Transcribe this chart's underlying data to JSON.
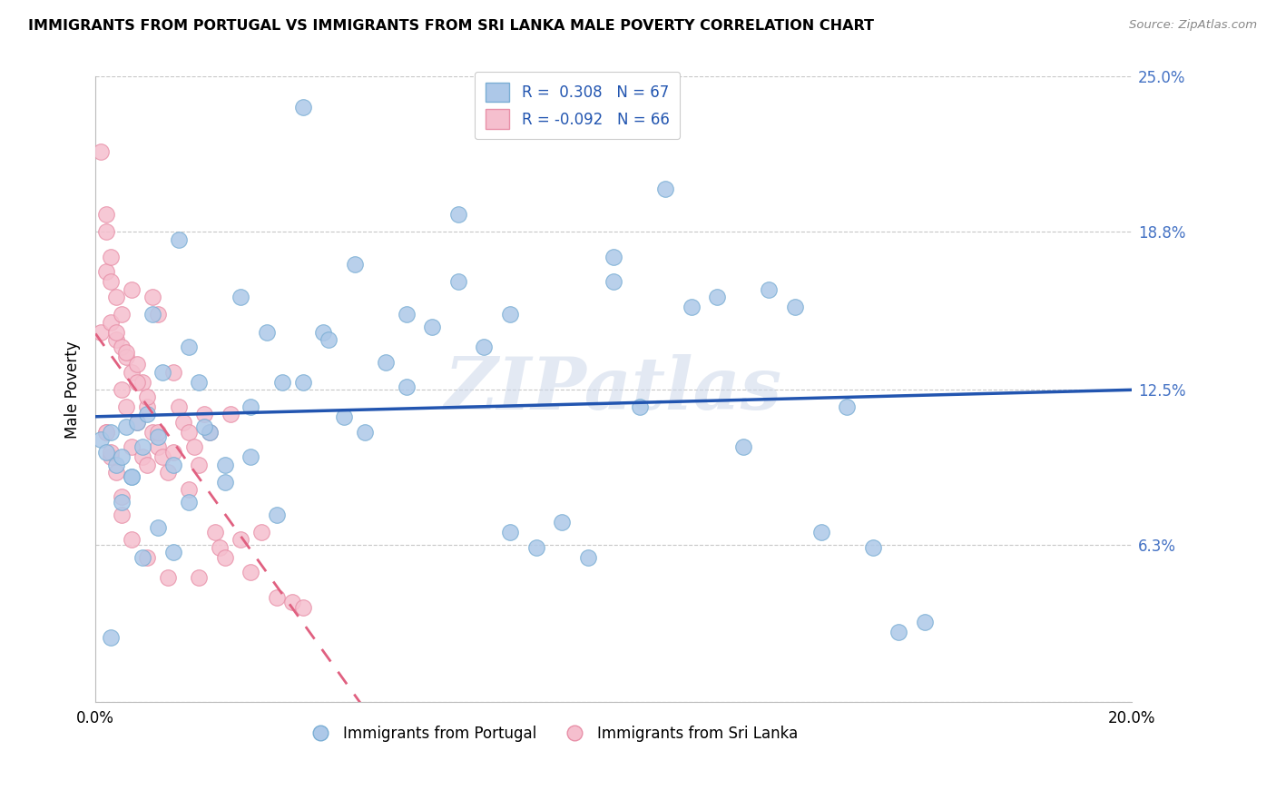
{
  "title": "IMMIGRANTS FROM PORTUGAL VS IMMIGRANTS FROM SRI LANKA MALE POVERTY CORRELATION CHART",
  "source": "Source: ZipAtlas.com",
  "ylabel": "Male Poverty",
  "xlim": [
    0.0,
    0.2
  ],
  "ylim": [
    0.0,
    0.25
  ],
  "ytick_vals": [
    0.0,
    0.063,
    0.125,
    0.188,
    0.25
  ],
  "ytick_labels": [
    "",
    "6.3%",
    "12.5%",
    "18.8%",
    "25.0%"
  ],
  "xtick_vals": [
    0.0,
    0.05,
    0.1,
    0.15,
    0.2
  ],
  "xtick_labels": [
    "0.0%",
    "",
    "",
    "",
    "20.0%"
  ],
  "portugal_color": "#adc8e8",
  "portugal_edge": "#7aaed4",
  "srilanka_color": "#f5bfce",
  "srilanka_edge": "#e890a8",
  "R_portugal": 0.308,
  "N_portugal": 67,
  "R_srilanka": -0.092,
  "N_srilanka": 66,
  "watermark_text": "ZIPatlas",
  "legend_portugal": "Immigrants from Portugal",
  "legend_srilanka": "Immigrants from Sri Lanka",
  "line_portugal_color": "#2255b0",
  "line_srilanka_color": "#e06080",
  "portugal_x": [
    0.001,
    0.002,
    0.003,
    0.004,
    0.005,
    0.006,
    0.007,
    0.008,
    0.009,
    0.01,
    0.011,
    0.012,
    0.013,
    0.015,
    0.016,
    0.018,
    0.02,
    0.022,
    0.025,
    0.028,
    0.03,
    0.033,
    0.036,
    0.04,
    0.044,
    0.048,
    0.052,
    0.056,
    0.06,
    0.065,
    0.07,
    0.075,
    0.08,
    0.085,
    0.09,
    0.095,
    0.1,
    0.105,
    0.11,
    0.115,
    0.12,
    0.125,
    0.13,
    0.135,
    0.14,
    0.145,
    0.15,
    0.155,
    0.16,
    0.003,
    0.005,
    0.007,
    0.009,
    0.012,
    0.015,
    0.018,
    0.021,
    0.025,
    0.03,
    0.035,
    0.04,
    0.045,
    0.05,
    0.06,
    0.07,
    0.08,
    0.1
  ],
  "portugal_y": [
    0.105,
    0.1,
    0.108,
    0.095,
    0.098,
    0.11,
    0.09,
    0.112,
    0.102,
    0.115,
    0.155,
    0.106,
    0.132,
    0.095,
    0.185,
    0.142,
    0.128,
    0.108,
    0.095,
    0.162,
    0.118,
    0.148,
    0.128,
    0.238,
    0.148,
    0.114,
    0.108,
    0.136,
    0.126,
    0.15,
    0.168,
    0.142,
    0.068,
    0.062,
    0.072,
    0.058,
    0.178,
    0.118,
    0.205,
    0.158,
    0.162,
    0.102,
    0.165,
    0.158,
    0.068,
    0.118,
    0.062,
    0.028,
    0.032,
    0.026,
    0.08,
    0.09,
    0.058,
    0.07,
    0.06,
    0.08,
    0.11,
    0.088,
    0.098,
    0.075,
    0.128,
    0.145,
    0.175,
    0.155,
    0.195,
    0.155,
    0.168
  ],
  "srilanka_x": [
    0.001,
    0.001,
    0.002,
    0.002,
    0.002,
    0.003,
    0.003,
    0.003,
    0.004,
    0.004,
    0.004,
    0.005,
    0.005,
    0.005,
    0.006,
    0.006,
    0.007,
    0.007,
    0.007,
    0.008,
    0.008,
    0.009,
    0.009,
    0.01,
    0.01,
    0.011,
    0.011,
    0.012,
    0.012,
    0.013,
    0.014,
    0.015,
    0.016,
    0.017,
    0.018,
    0.019,
    0.02,
    0.021,
    0.022,
    0.023,
    0.024,
    0.025,
    0.026,
    0.028,
    0.03,
    0.032,
    0.035,
    0.038,
    0.04,
    0.002,
    0.003,
    0.004,
    0.005,
    0.006,
    0.008,
    0.01,
    0.012,
    0.015,
    0.018,
    0.02,
    0.002,
    0.003,
    0.005,
    0.007,
    0.01,
    0.014
  ],
  "srilanka_y": [
    0.22,
    0.148,
    0.195,
    0.172,
    0.108,
    0.168,
    0.152,
    0.098,
    0.162,
    0.145,
    0.092,
    0.142,
    0.125,
    0.082,
    0.138,
    0.118,
    0.165,
    0.132,
    0.102,
    0.135,
    0.112,
    0.128,
    0.098,
    0.118,
    0.095,
    0.162,
    0.108,
    0.102,
    0.155,
    0.098,
    0.092,
    0.132,
    0.118,
    0.112,
    0.108,
    0.102,
    0.095,
    0.115,
    0.108,
    0.068,
    0.062,
    0.058,
    0.115,
    0.065,
    0.052,
    0.068,
    0.042,
    0.04,
    0.038,
    0.188,
    0.178,
    0.148,
    0.155,
    0.14,
    0.128,
    0.122,
    0.108,
    0.1,
    0.085,
    0.05,
    0.108,
    0.1,
    0.075,
    0.065,
    0.058,
    0.05
  ]
}
